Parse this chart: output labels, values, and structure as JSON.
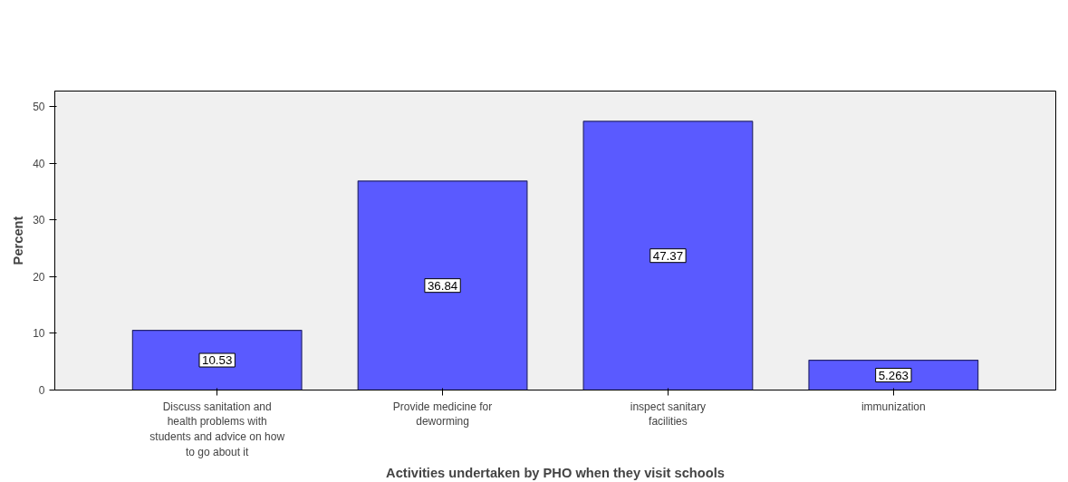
{
  "chart_data": {
    "type": "bar",
    "xlabel": "Activities undertaken by PHO when they visit schools",
    "ylabel": "Percent",
    "categories": [
      "Discuss sanitation and health problems with students and advice on how to go about it",
      "Provide medicine for deworming",
      "inspect sanitary facilities",
      "immunization"
    ],
    "values": [
      10.53,
      36.84,
      47.37,
      5.263
    ],
    "color": "#5a5aff",
    "ylim": [
      0,
      52.7
    ],
    "yticks": [
      0,
      10,
      20,
      30,
      40,
      50
    ],
    "grid": false,
    "data_labels": true
  }
}
